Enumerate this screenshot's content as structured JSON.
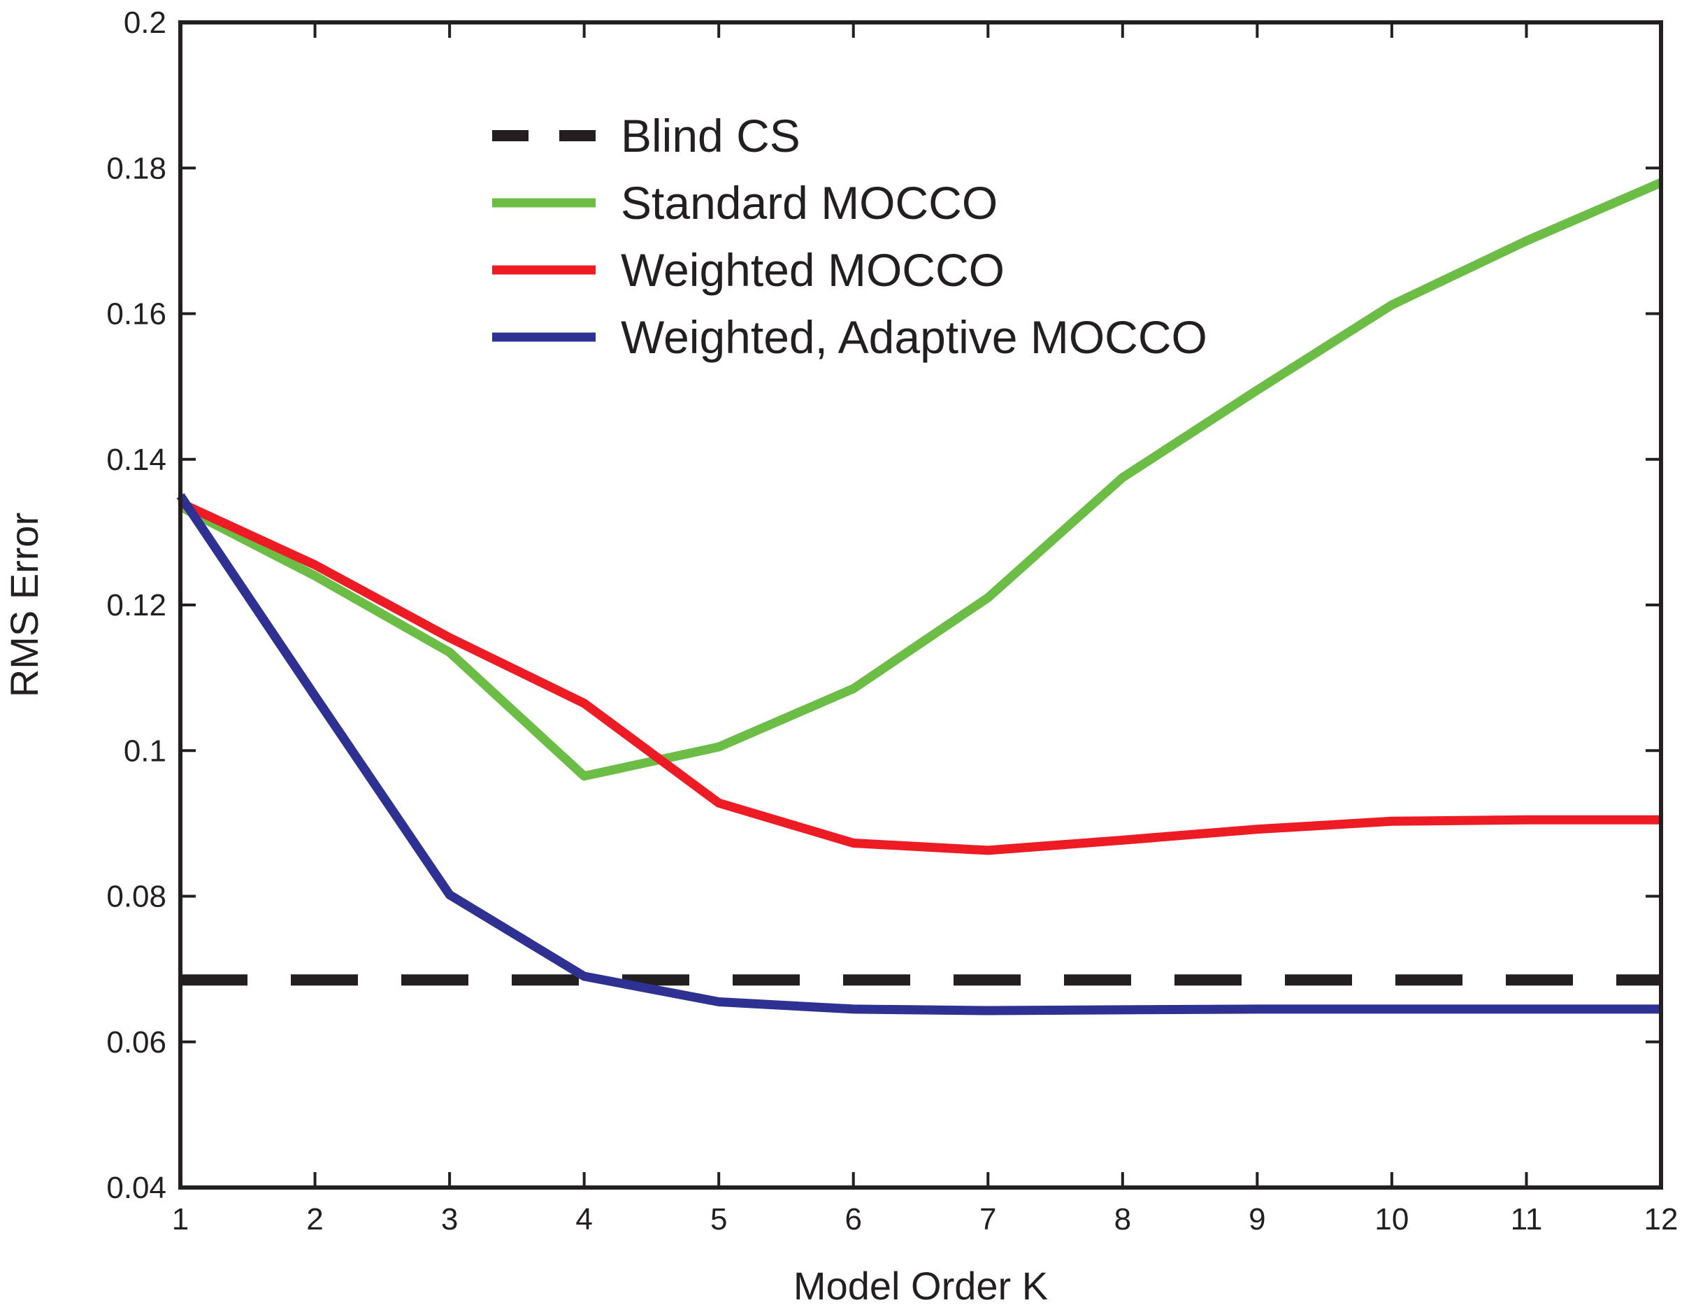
{
  "chart_data": {
    "type": "line",
    "xlabel": "Model Order K",
    "ylabel": "RMS Error",
    "xlim": [
      1,
      12
    ],
    "ylim": [
      0.04,
      0.2
    ],
    "x": [
      1,
      2,
      3,
      4,
      5,
      6,
      7,
      8,
      9,
      10,
      11,
      12
    ],
    "x_tick_labels": [
      "1",
      "2",
      "3",
      "4",
      "5",
      "6",
      "7",
      "8",
      "9",
      "10",
      "11",
      "12"
    ],
    "y_ticks": [
      0.04,
      0.06,
      0.08,
      0.1,
      0.12,
      0.14,
      0.16,
      0.18,
      0.2
    ],
    "y_tick_labels": [
      "0.04",
      "0.06",
      "0.08",
      "0.1",
      "0.12",
      "0.14",
      "0.16",
      "0.18",
      "0.2"
    ],
    "legend_position": "top-center",
    "grid": false,
    "series": [
      {
        "name": "Blind CS",
        "color": "#231f20",
        "dashed": true,
        "values": [
          0.0685,
          0.0685,
          0.0685,
          0.0685,
          0.0685,
          0.0685,
          0.0685,
          0.0685,
          0.0685,
          0.0685,
          0.0685,
          0.0685
        ]
      },
      {
        "name": "Standard MOCCO",
        "color": "#6cbd45",
        "dashed": false,
        "values": [
          0.1335,
          0.124,
          0.1135,
          0.0965,
          0.1005,
          0.1085,
          0.121,
          0.1375,
          0.1495,
          0.1612,
          0.17,
          0.178
        ]
      },
      {
        "name": "Weighted MOCCO",
        "color": "#ed1c24",
        "dashed": false,
        "values": [
          0.134,
          0.1255,
          0.1155,
          0.1065,
          0.0928,
          0.0873,
          0.0863,
          0.0877,
          0.0892,
          0.0903,
          0.0905,
          0.0905
        ]
      },
      {
        "name": "Weighted, Adaptive MOCCO",
        "color": "#2e3192",
        "dashed": false,
        "values": [
          0.135,
          0.1075,
          0.0802,
          0.069,
          0.0655,
          0.0645,
          0.0643,
          0.0644,
          0.0645,
          0.0645,
          0.0645,
          0.0645
        ]
      }
    ]
  }
}
